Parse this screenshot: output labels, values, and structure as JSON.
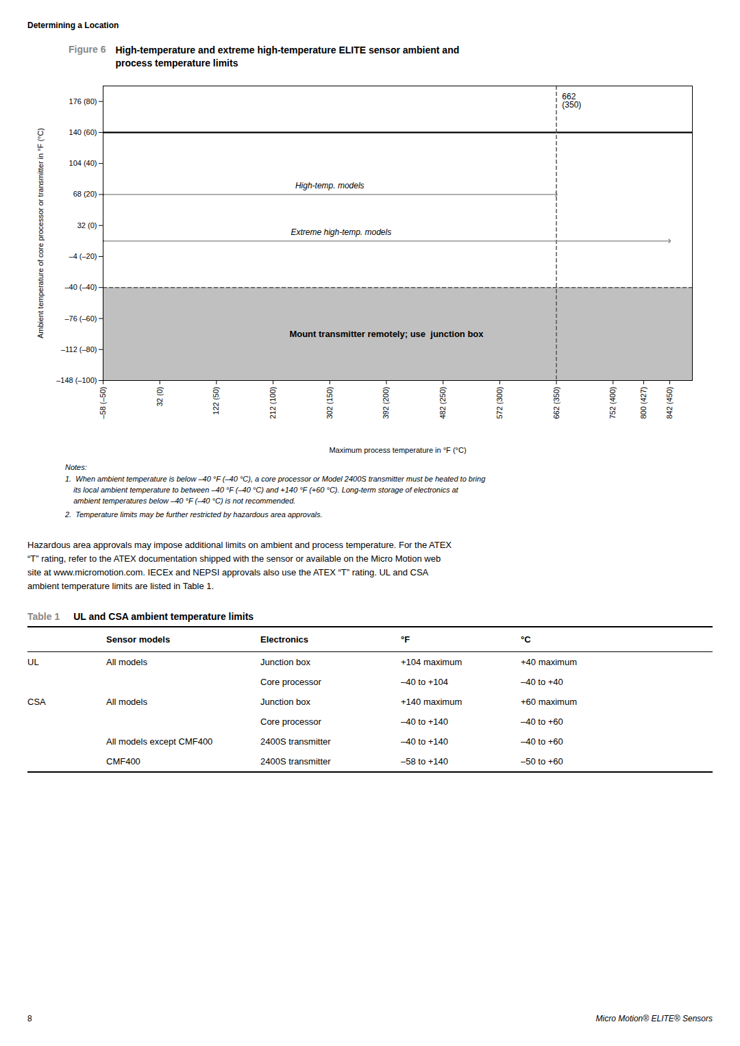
{
  "page_title": "Determining a Location",
  "chart_data": {
    "type": "line",
    "figure_label": "Figure 6",
    "figure_label_color": "#888888",
    "title": [
      "High-temperature and extreme high-temperature ELITE sensor ambient and",
      "process temperature limits"
    ],
    "xlabel": "Maximum process temperature in °F (°C)",
    "ylabel": "Ambient temperature of core processor or transmitter in °F (°C)",
    "xlim": [
      -50,
      470
    ],
    "ylim": [
      -100,
      90
    ],
    "xticks": [
      {
        "value": -50,
        "label": "–58 (–50)"
      },
      {
        "value": 0,
        "label": "32 (0)"
      },
      {
        "value": 50,
        "label": "122 (50)"
      },
      {
        "value": 100,
        "label": "212 (100)"
      },
      {
        "value": 150,
        "label": "302 (150)"
      },
      {
        "value": 200,
        "label": "392 (200)"
      },
      {
        "value": 250,
        "label": "482 (250)"
      },
      {
        "value": 300,
        "label": "572 (300)"
      },
      {
        "value": 350,
        "label": "662 (350)"
      },
      {
        "value": 400,
        "label": "752 (400)"
      },
      {
        "value": 427,
        "label": "800 (427)"
      },
      {
        "value": 450,
        "label": "842 (450)"
      }
    ],
    "yticks": [
      {
        "value": 80,
        "label": "176 (80)"
      },
      {
        "value": 60,
        "label": "140 (60)"
      },
      {
        "value": 40,
        "label": "104 (40)"
      },
      {
        "value": 20,
        "label": "68 (20)"
      },
      {
        "value": 0,
        "label": "32 (0)"
      },
      {
        "value": -20,
        "label": "–4 (–20)"
      },
      {
        "value": -40,
        "label": "–40 (–40)"
      },
      {
        "value": -60,
        "label": "–76 (–60)"
      },
      {
        "value": -80,
        "label": "–112 (–80)"
      },
      {
        "value": -100,
        "label": "–148 (–100)"
      }
    ],
    "grid": false,
    "regions": [
      {
        "x": [
          -50,
          470
        ],
        "y": [
          -100,
          -40
        ],
        "color": "#c0c0c0",
        "label": "Mount transmitter remotely; use  junction box",
        "label_x": 200,
        "label_y": -70
      }
    ],
    "reference_lines": [
      {
        "y": 60,
        "color": "black",
        "line_style": "solid"
      },
      {
        "y": -40,
        "color": "#555555",
        "line_style": "dashed"
      },
      {
        "x": 350,
        "color": "#555555",
        "line_style": "dashed"
      }
    ],
    "ranges": [
      {
        "label": "High-temp. models",
        "x": [
          -50,
          350
        ],
        "y": 20,
        "label_x": 150,
        "label_y": 24,
        "color": "gray"
      },
      {
        "label": "Extreme high-temp. models",
        "x": [
          -50,
          450
        ],
        "y": -10,
        "label_x": 160,
        "label_y": -6,
        "color": "gray"
      }
    ],
    "annotations": [
      {
        "text": "662\n(350)",
        "x": 355,
        "y": 85
      }
    ]
  },
  "notes": {
    "title": "Notes:",
    "items": [
      "1.  When ambient temperature is below –40 °F (–40 °C), a core processor or Model 2400S transmitter must be heated to bring\n    its local ambient temperature to between –40 °F (–40 °C) and +140 °F (+60 °C). Long-term storage of electronics at\n    ambient temperatures below –40 °F (–40 °C) is not recommended.",
      "2.  Temperature limits may be further restricted by hazardous area approvals."
    ]
  },
  "paragraph": [
    "Hazardous area approvals may impose additional limits on ambient and process temperature. For the ATEX",
    "“T” rating, refer to the ATEX documentation shipped with the sensor or available on the Micro Motion web",
    "site at www.micromotion.com. IECEx and NEPSI approvals also use the ATEX “T” rating. UL and CSA",
    "ambient temperature limits are listed in Table 1."
  ],
  "table": {
    "label": "Table 1",
    "label_color": "#888888",
    "title": "UL and CSA ambient temperature limits",
    "headers": [
      "Sensor models",
      "Electronics",
      "°F",
      "°C"
    ],
    "rows": [
      [
        "UL",
        "All models",
        "Junction box",
        "+104 maximum",
        "+40 maximum"
      ],
      [
        null,
        null,
        "Core processor",
        "–40 to +104",
        "–40 to +40"
      ],
      [
        "CSA",
        "All models",
        "Junction box",
        "+140 maximum",
        "+60 maximum"
      ],
      [
        null,
        null,
        "Core processor",
        "–40 to +140",
        "–40 to +60"
      ],
      [
        null,
        "All models except CMF400",
        "2400S transmitter",
        "–40 to +140",
        "–40 to +60"
      ],
      [
        null,
        "CMF400",
        "2400S transmitter",
        "–58 to +140",
        "–50 to +60"
      ]
    ]
  },
  "footer": {
    "left": "8",
    "right": "Micro Motion® ELITE® Sensors"
  }
}
